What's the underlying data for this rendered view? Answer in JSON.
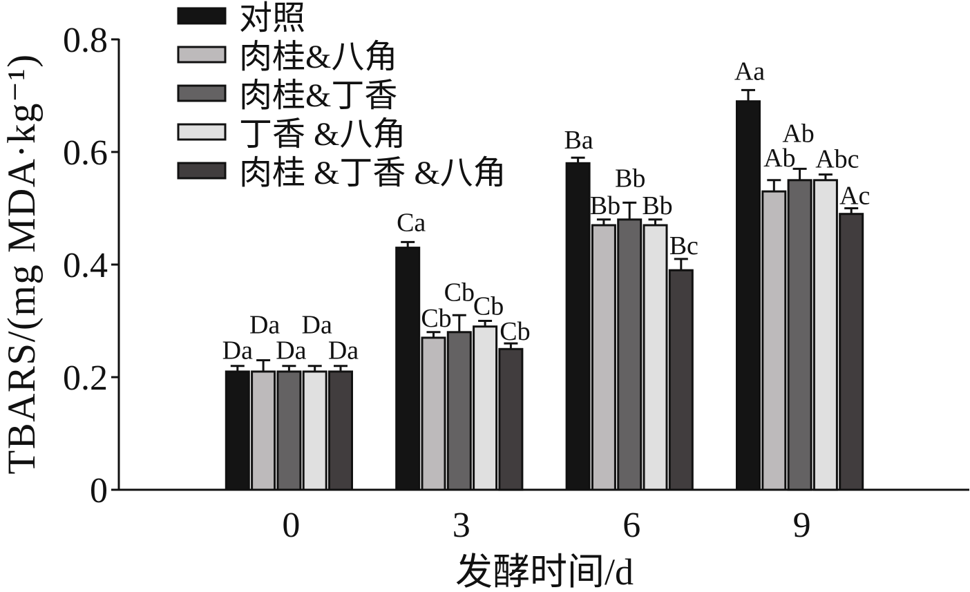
{
  "chart_data": {
    "type": "bar",
    "categories": [
      "0",
      "3",
      "6",
      "9"
    ],
    "xlabel": "发酵时间/d",
    "ylabel": "TBARS/(mg MDA·kg⁻¹)",
    "ylim": [
      0,
      0.8
    ],
    "yticks": [
      0,
      0.2,
      0.4,
      0.6,
      0.8
    ],
    "ytick_labels": [
      "0",
      "0.2",
      "0.4",
      "0.6",
      "0.8"
    ],
    "grid": false,
    "legend": "top-left",
    "series": [
      {
        "name": "对照",
        "color": "#141414",
        "values": [
          0.21,
          0.43,
          0.58,
          0.69
        ],
        "errors": [
          0.01,
          0.01,
          0.01,
          0.02
        ],
        "labels": [
          "Da",
          "Ca",
          "Ba",
          "Aa"
        ]
      },
      {
        "name": "肉桂&八角",
        "color": "#bdbabb",
        "values": [
          0.21,
          0.27,
          0.47,
          0.53
        ],
        "errors": [
          0.02,
          0.01,
          0.01,
          0.02
        ],
        "labels": [
          "Da",
          "Cb",
          "Bb",
          "Ab"
        ]
      },
      {
        "name": "肉桂&丁香",
        "color": "#646263",
        "values": [
          0.21,
          0.28,
          0.48,
          0.55
        ],
        "errors": [
          0.01,
          0.03,
          0.03,
          0.02
        ],
        "labels": [
          "Da",
          "Cb",
          "Bb",
          "Ab"
        ]
      },
      {
        "name": "丁香 &八角",
        "color": "#e0e0e0",
        "values": [
          0.21,
          0.29,
          0.47,
          0.55
        ],
        "errors": [
          0.01,
          0.01,
          0.01,
          0.01
        ],
        "labels": [
          "Da",
          "Cb",
          "Bb",
          "Abc"
        ]
      },
      {
        "name": "肉桂 &丁香 &八角",
        "color": "#413d3e",
        "values": [
          0.21,
          0.25,
          0.39,
          0.49
        ],
        "errors": [
          0.01,
          0.01,
          0.02,
          0.01
        ],
        "labels": [
          "Da",
          "Cb",
          "Bc",
          "Ac"
        ]
      }
    ]
  }
}
